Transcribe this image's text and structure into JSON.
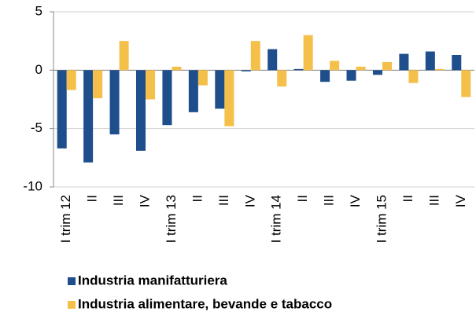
{
  "chart_data": {
    "type": "bar",
    "categories": [
      "I trim 12",
      "II",
      "III",
      "IV",
      "I trim 13",
      "II",
      "III",
      "IV",
      "I trim 14",
      "II",
      "III",
      "IV",
      "I trim 15",
      "II",
      "III",
      "IV"
    ],
    "series": [
      {
        "name": "Industria manifatturiera",
        "color": "#1f4e8c",
        "values": [
          -6.7,
          -7.9,
          -5.5,
          -6.9,
          -4.7,
          -3.6,
          -3.3,
          -0.1,
          1.8,
          0.1,
          -1.0,
          -0.9,
          -0.4,
          1.4,
          1.6,
          1.3
        ]
      },
      {
        "name": "Industria alimentare, bevande e tabacco",
        "color": "#f5c04a",
        "values": [
          -1.7,
          -2.4,
          2.5,
          -2.5,
          0.3,
          -1.3,
          -4.8,
          2.5,
          -1.4,
          3.0,
          0.8,
          0.3,
          0.7,
          -1.1,
          0.1,
          -2.3
        ]
      }
    ],
    "ylim": [
      -10,
      5
    ],
    "yticks": [
      -10,
      -5,
      0,
      5
    ],
    "grid": true
  }
}
